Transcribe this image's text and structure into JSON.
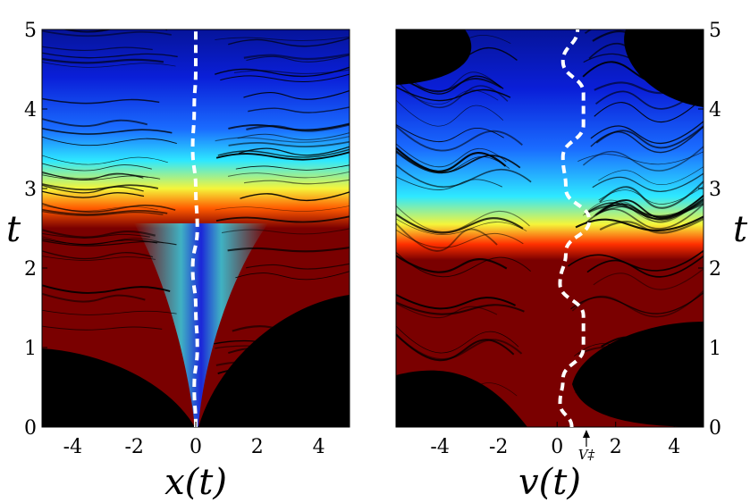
{
  "colors": {
    "blue": "#0a1fd8",
    "cyan": "#2ee8ff",
    "yellow": "#f5f53a",
    "red": "#7a0000",
    "black": "#000000",
    "trajectory": "#ffffff"
  },
  "chart_data": [
    {
      "type": "heatmap",
      "name": "position-density",
      "xlabel": "x(t)",
      "ylabel": "t",
      "xlim": [
        -5,
        5
      ],
      "ylim": [
        0,
        5
      ],
      "x_ticks": [
        -4,
        -2,
        0,
        2,
        4
      ],
      "x_tick_labels": [
        "-4",
        "-2",
        "0",
        "2",
        "4"
      ],
      "y_ticks": [
        0,
        1,
        2,
        3,
        4,
        5
      ],
      "y_tick_labels": [
        "0",
        "1",
        "2",
        "3",
        "4",
        "5"
      ],
      "dashed_trajectory": {
        "t": [
          0,
          0.5,
          1,
          1.5,
          2,
          2.5,
          3,
          3.5,
          4,
          4.5,
          5
        ],
        "x": [
          0,
          -0.05,
          0.05,
          0.0,
          -0.1,
          0.05,
          0.0,
          -0.1,
          -0.05,
          0.0,
          0.0
        ]
      }
    },
    {
      "type": "heatmap",
      "name": "velocity-density",
      "xlabel": "v(t)",
      "ylabel": "t",
      "xlim": [
        -5.5,
        5
      ],
      "ylim": [
        0,
        5
      ],
      "x_ticks": [
        -4,
        -2,
        0,
        2,
        4
      ],
      "x_tick_labels": [
        "-4",
        "-2",
        "0",
        "2",
        "4"
      ],
      "y_ticks": [
        0,
        1,
        2,
        3,
        4,
        5
      ],
      "y_tick_labels": [
        "0",
        "1",
        "2",
        "3",
        "4",
        "5"
      ],
      "annotation": {
        "label": "V‡",
        "x": 1.0
      },
      "dashed_trajectory": {
        "t": [
          0,
          0.3,
          0.6,
          1.0,
          1.4,
          1.8,
          2.2,
          2.6,
          3.0,
          3.4,
          3.8,
          4.2,
          4.6,
          5.0
        ],
        "v": [
          0.5,
          0.1,
          0.2,
          0.9,
          0.9,
          0.1,
          0.3,
          1.1,
          0.3,
          0.2,
          0.9,
          0.9,
          0.2,
          0.7
        ]
      }
    }
  ]
}
